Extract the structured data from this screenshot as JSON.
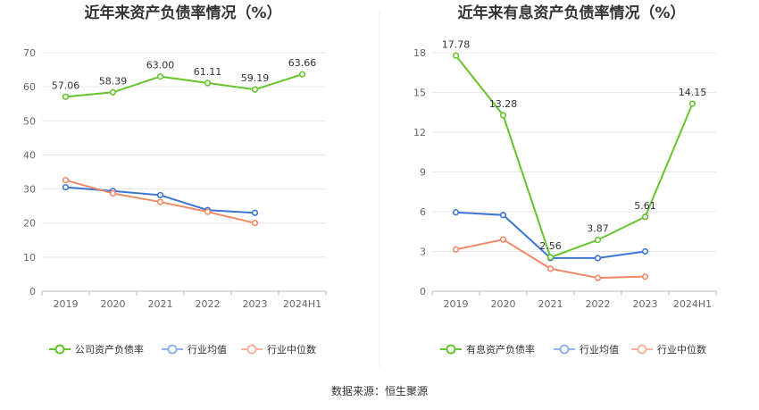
{
  "colors": {
    "company": "#66c42c",
    "avg": "#3a75d3",
    "median": "#f08a65",
    "avg_legend": "#8fb3ea",
    "median_legend": "#f5b29c",
    "grid": "#e6e6e6",
    "axis": "#bbbbbb"
  },
  "footer": "数据来源：恒生聚源",
  "chart_data": [
    {
      "type": "line",
      "title": "近年来资产负债率情况（%）",
      "categories": [
        "2019",
        "2020",
        "2021",
        "2022",
        "2023",
        "2024H1"
      ],
      "ylim": [
        0,
        70
      ],
      "yticks": [
        0,
        10,
        20,
        30,
        40,
        50,
        60,
        70
      ],
      "grid": true,
      "legend_position": "bottom",
      "series": [
        {
          "name": "公司资产负债率",
          "key": "company",
          "values": [
            57.06,
            58.39,
            63.0,
            61.11,
            59.19,
            63.66
          ],
          "labels": [
            "57.06",
            "58.39",
            "63.00",
            "61.11",
            "59.19",
            "63.66"
          ]
        },
        {
          "name": "行业均值",
          "key": "avg",
          "values": [
            30.5,
            29.4,
            28.2,
            23.8,
            23.0,
            null
          ]
        },
        {
          "name": "行业中位数",
          "key": "median",
          "values": [
            32.6,
            28.7,
            26.2,
            23.3,
            20.0,
            null
          ]
        }
      ]
    },
    {
      "type": "line",
      "title": "近年来有息资产负债率情况（%）",
      "categories": [
        "2019",
        "2020",
        "2021",
        "2022",
        "2023",
        "2024H1"
      ],
      "ylim": [
        0,
        18
      ],
      "yticks": [
        0,
        3,
        6,
        9,
        12,
        15,
        18
      ],
      "grid": true,
      "legend_position": "bottom",
      "series": [
        {
          "name": "有息资产负债率",
          "key": "company",
          "values": [
            17.78,
            13.28,
            2.56,
            3.87,
            5.61,
            14.15
          ],
          "labels": [
            "17.78",
            "13.28",
            "2.56",
            "3.87",
            "5.61",
            "14.15"
          ]
        },
        {
          "name": "行业均值",
          "key": "avg",
          "values": [
            5.95,
            5.75,
            2.5,
            2.5,
            3.0,
            null
          ]
        },
        {
          "name": "行业中位数",
          "key": "median",
          "values": [
            3.15,
            3.9,
            1.7,
            1.0,
            1.1,
            null
          ]
        }
      ]
    }
  ]
}
